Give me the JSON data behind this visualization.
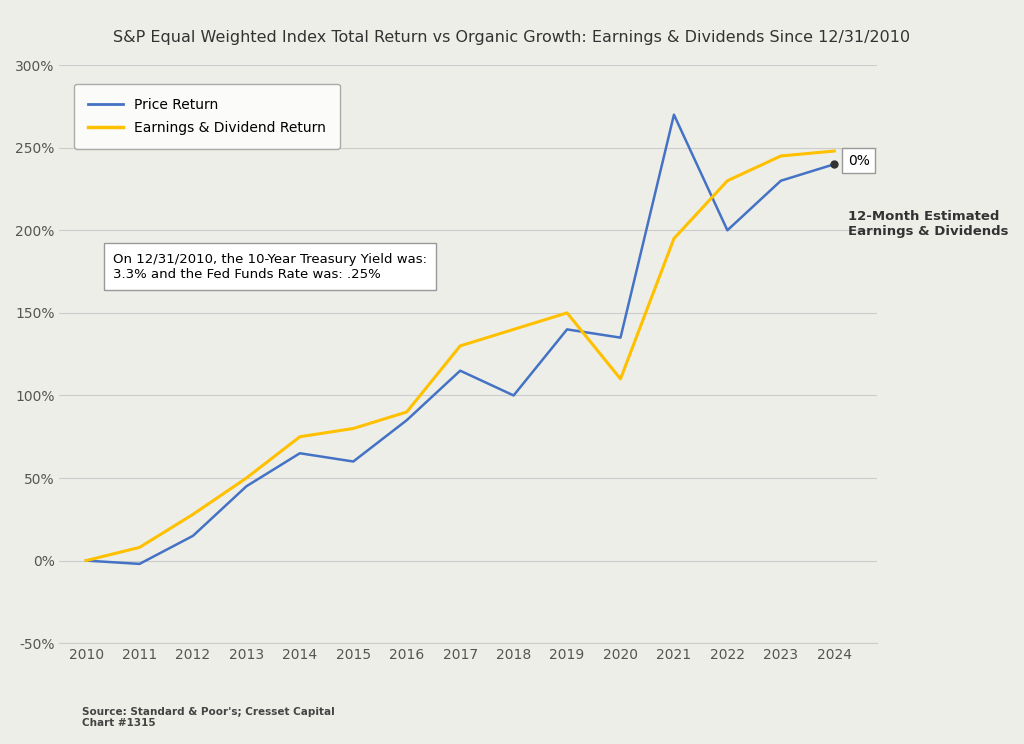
{
  "title": "S&P Equal Weighted Index Total Return vs Organic Growth: Earnings & Dividends Since 12/31/2010",
  "years": [
    2010,
    2011,
    2012,
    2013,
    2014,
    2015,
    2016,
    2017,
    2018,
    2019,
    2020,
    2021,
    2022,
    2023,
    2024
  ],
  "price_return": [
    0,
    -2,
    15,
    45,
    65,
    60,
    85,
    115,
    100,
    140,
    135,
    270,
    200,
    230,
    240
  ],
  "earnings_dividend_return": [
    0,
    8,
    28,
    50,
    75,
    80,
    90,
    130,
    140,
    150,
    110,
    195,
    230,
    245,
    248
  ],
  "price_color": "#4472C4",
  "earnings_color": "#FFC000",
  "ylim": [
    -50,
    300
  ],
  "yticks": [
    -50,
    0,
    50,
    100,
    150,
    200,
    250,
    300
  ],
  "ytick_labels": [
    "-50%",
    "0%",
    "50%",
    "100%",
    "150%",
    "200%",
    "250%",
    "300%"
  ],
  "legend_label_price": "Price Return",
  "legend_label_earnings": "Earnings & Dividend Return",
  "annotation_box_text": "On 12/31/2010, the 10-Year Treasury Yield was:\n3.3% and the Fed Funds Rate was: .25%",
  "annotation_label": "0%",
  "side_label": "12-Month Estimated\nEarnings & Dividends",
  "source_text": "Source: Standard & Poor's; Cresset Capital\nChart #1315",
  "background_color": "#eeeee8",
  "plot_bg_color": "#eeeee8"
}
